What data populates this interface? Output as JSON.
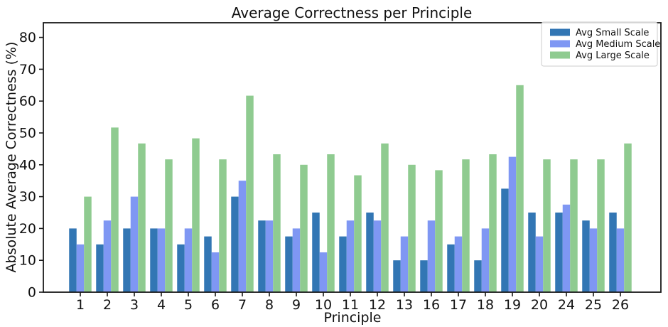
{
  "chart_data": {
    "type": "bar",
    "title": "Average Correctness per Principle",
    "xlabel": "Principle",
    "ylabel": "Absolute Average Correctness (%)",
    "categories": [
      "1",
      "2",
      "3",
      "4",
      "5",
      "6",
      "7",
      "8",
      "9",
      "10",
      "11",
      "12",
      "13",
      "16",
      "17",
      "18",
      "19",
      "20",
      "24",
      "25",
      "26"
    ],
    "series": [
      {
        "name": "Avg Small Scale",
        "color": "#3276B4",
        "values": [
          20,
          15,
          20,
          20,
          15,
          17.5,
          30,
          22.5,
          17.5,
          25,
          17.5,
          25,
          10,
          10,
          15,
          10,
          32.5,
          25,
          25,
          22.5,
          25
        ]
      },
      {
        "name": "Avg Medium Scale",
        "color": "#7F97F3",
        "values": [
          15,
          22.5,
          30,
          20,
          20,
          12.5,
          35,
          22.5,
          20,
          12.5,
          22.5,
          22.5,
          17.5,
          22.5,
          17.5,
          20,
          42.5,
          17.5,
          27.5,
          20,
          20
        ]
      },
      {
        "name": "Avg Large Scale",
        "color": "#8FCB90",
        "values": [
          30,
          51.7,
          46.7,
          41.7,
          48.3,
          41.7,
          61.7,
          43.3,
          40,
          43.3,
          36.7,
          46.7,
          40,
          38.3,
          41.7,
          43.3,
          65,
          41.7,
          41.7,
          41.7,
          46.7
        ]
      }
    ],
    "ylim": [
      0,
      84.6
    ],
    "yticks": [
      0,
      10,
      20,
      30,
      40,
      50,
      60,
      70,
      80
    ],
    "grid": false,
    "legend_position": "upper right",
    "colors": {
      "spine": "#1a1a1a",
      "text": "#111111",
      "legend_border": "#cccccc",
      "background": "#ffffff"
    }
  }
}
